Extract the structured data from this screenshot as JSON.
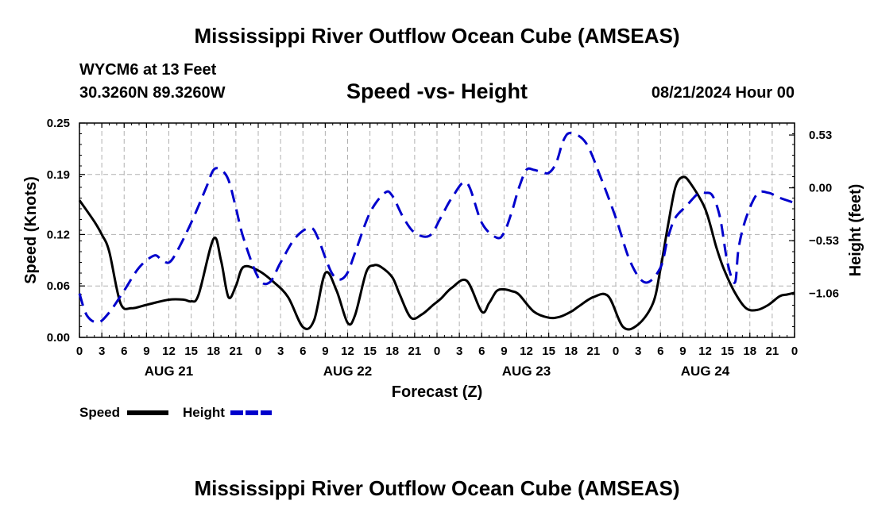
{
  "header": {
    "title": "Mississippi River Outflow Ocean Cube (AMSEAS)",
    "station": "WYCM6 at 13 Feet",
    "coordinates": "30.3260N  89.3260W",
    "subtitle": "Speed -vs- Height",
    "datetime": "08/21/2024 Hour 00"
  },
  "footer": {
    "title": "Mississippi River Outflow Ocean Cube (AMSEAS)"
  },
  "chart_data": {
    "type": "line",
    "xlabel": "Forecast (Z)",
    "ylabel_left": "Speed (Knots)",
    "ylabel_right": "Height (feet)",
    "x_range_hours": [
      0,
      96
    ],
    "x_tick_labels": [
      "0",
      "3",
      "6",
      "9",
      "12",
      "15",
      "18",
      "21",
      "0",
      "3",
      "6",
      "9",
      "12",
      "15",
      "18",
      "21",
      "0",
      "3",
      "6",
      "9",
      "12",
      "15",
      "18",
      "21",
      "0",
      "3",
      "6",
      "9",
      "12",
      "15",
      "18",
      "21",
      "0"
    ],
    "date_labels": [
      {
        "label": "AUG 21",
        "hour": 12
      },
      {
        "label": "AUG 22",
        "hour": 36
      },
      {
        "label": "AUG 23",
        "hour": 60
      },
      {
        "label": "AUG 24",
        "hour": 84
      }
    ],
    "ylim_left": [
      0,
      0.25
    ],
    "y_ticks_left": [
      "0.00",
      "0.06",
      "0.12",
      "0.19",
      "0.25"
    ],
    "ylim_right": [
      -1.5,
      0.65
    ],
    "y_ticks_right": [
      "−1.06",
      "−0.53",
      "0.00",
      "0.53"
    ],
    "grid": true,
    "legend": [
      {
        "label": "Speed",
        "color": "#000000",
        "style": "solid"
      },
      {
        "label": "Height",
        "color": "#0000cc",
        "style": "dashed"
      }
    ],
    "series": [
      {
        "name": "Speed",
        "axis": "left",
        "color": "#000000",
        "x": [
          0,
          2,
          3,
          4,
          5.5,
          7,
          9,
          12,
          14,
          15,
          16,
          18,
          19,
          20,
          21,
          22,
          24,
          26,
          28,
          30,
          31.5,
          33,
          34.5,
          36,
          37,
          38.5,
          39.5,
          40.5,
          42,
          43,
          44.5,
          46,
          47.5,
          48.5,
          50,
          52,
          54,
          55,
          56,
          57,
          58,
          59,
          61,
          63,
          64.5,
          66,
          67,
          69,
          71,
          73,
          75,
          77,
          78,
          79,
          80,
          81,
          82,
          84,
          85.5,
          86.5,
          88,
          89.5,
          91,
          92.5,
          94,
          95,
          96
        ],
        "y": [
          0.16,
          0.135,
          0.12,
          0.1,
          0.04,
          0.034,
          0.038,
          0.044,
          0.044,
          0.042,
          0.05,
          0.115,
          0.09,
          0.047,
          0.06,
          0.082,
          0.078,
          0.065,
          0.047,
          0.012,
          0.02,
          0.075,
          0.055,
          0.017,
          0.026,
          0.076,
          0.084,
          0.082,
          0.07,
          0.05,
          0.023,
          0.027,
          0.038,
          0.045,
          0.058,
          0.066,
          0.03,
          0.04,
          0.054,
          0.056,
          0.054,
          0.05,
          0.03,
          0.023,
          0.024,
          0.03,
          0.036,
          0.047,
          0.048,
          0.012,
          0.015,
          0.04,
          0.08,
          0.13,
          0.175,
          0.187,
          0.18,
          0.15,
          0.105,
          0.08,
          0.052,
          0.034,
          0.032,
          0.038,
          0.048,
          0.05,
          0.052
        ]
      },
      {
        "name": "Height",
        "axis": "right",
        "color": "#0000cc",
        "x": [
          0,
          1,
          2.5,
          4,
          6,
          8,
          10,
          11,
          12,
          13,
          15,
          17,
          18,
          19,
          20,
          21,
          22,
          24,
          25.5,
          27,
          29,
          31,
          32,
          33,
          34,
          35,
          36,
          37,
          39,
          41,
          42,
          43.5,
          45,
          47,
          48.5,
          50,
          52,
          54,
          56,
          57,
          58,
          59,
          60,
          61,
          62,
          63,
          64,
          65,
          66,
          68,
          70,
          72,
          74,
          76,
          78,
          79,
          80,
          81.5,
          83,
          84,
          85,
          86,
          87,
          88,
          88.5,
          89.5,
          91,
          92.5,
          94,
          96
        ],
        "y": [
          -1.06,
          -1.28,
          -1.35,
          -1.25,
          -1.03,
          -0.8,
          -0.68,
          -0.72,
          -0.75,
          -0.65,
          -0.35,
          0.0,
          0.18,
          0.18,
          0.08,
          -0.2,
          -0.5,
          -0.9,
          -0.95,
          -0.75,
          -0.5,
          -0.4,
          -0.5,
          -0.7,
          -0.87,
          -0.92,
          -0.85,
          -0.65,
          -0.25,
          -0.05,
          -0.08,
          -0.3,
          -0.45,
          -0.48,
          -0.3,
          -0.1,
          0.05,
          -0.35,
          -0.5,
          -0.45,
          -0.25,
          0.0,
          0.18,
          0.18,
          0.16,
          0.15,
          0.25,
          0.48,
          0.55,
          0.45,
          0.1,
          -0.3,
          -0.75,
          -0.95,
          -0.8,
          -0.5,
          -0.3,
          -0.18,
          -0.06,
          -0.05,
          -0.08,
          -0.3,
          -0.75,
          -0.95,
          -0.6,
          -0.3,
          -0.06,
          -0.05,
          -0.1,
          -0.15
        ]
      }
    ]
  }
}
